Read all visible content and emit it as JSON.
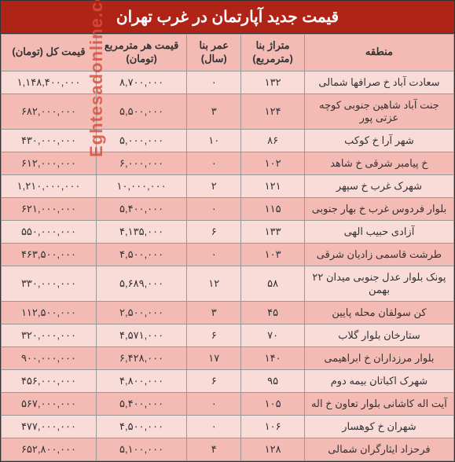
{
  "title": "قیمت جدید آپارتمان در غرب تهران",
  "watermark": "اقتصادآنلاین  Eghtesadonline.com",
  "headers": {
    "region": "منطقه",
    "area": "متراژ بنا (مترمربع)",
    "age": "عمر بنا (سال)",
    "ppm": "قیمت هر مترمربع (تومان)",
    "total": "قیمت کل (تومان)"
  },
  "rows": [
    {
      "region": "سعادت آباد خ صرافها شمالی",
      "area": "۱۳۲",
      "age": "۰",
      "ppm": "۸,۷۰۰,۰۰۰",
      "total": "۱,۱۴۸,۴۰۰,۰۰۰"
    },
    {
      "region": "جنت آباد شاهین جنوبی کوچه عزتی پور",
      "area": "۱۲۴",
      "age": "۳",
      "ppm": "۵,۵۰۰,۰۰۰",
      "total": "۶۸۲,۰۰۰,۰۰۰"
    },
    {
      "region": "شهر آرا خ کوکب",
      "area": "۸۶",
      "age": "۱۰",
      "ppm": "۵,۰۰۰,۰۰۰",
      "total": "۴۳۰,۰۰۰,۰۰۰"
    },
    {
      "region": "خ پیامبر شرقی خ شاهد",
      "area": "۱۰۲",
      "age": "۰",
      "ppm": "۶,۰۰۰,۰۰۰",
      "total": "۶۱۲,۰۰۰,۰۰۰"
    },
    {
      "region": "شهرک غرب خ سپهر",
      "area": "۱۲۱",
      "age": "۲",
      "ppm": "۱۰,۰۰۰,۰۰۰",
      "total": "۱,۲۱۰,۰۰۰,۰۰۰"
    },
    {
      "region": "بلوار فردوس غرب خ بهار جنوبی",
      "area": "۱۱۵",
      "age": "۰",
      "ppm": "۵,۴۰۰,۰۰۰",
      "total": "۶۲۱,۰۰۰,۰۰۰"
    },
    {
      "region": "آزادی حبیب الهی",
      "area": "۱۳۳",
      "age": "۶",
      "ppm": "۴,۱۳۵,۰۰۰",
      "total": "۵۵۰,۰۰۰,۰۰۰"
    },
    {
      "region": "طرشت قاسمی زادیان شرقی",
      "area": "۱۰۳",
      "age": "۰",
      "ppm": "۴,۵۰۰,۰۰۰",
      "total": "۴۶۳,۵۰۰,۰۰۰"
    },
    {
      "region": "پونک بلوار عدل جنوبی میدان ۲۲ بهمن",
      "area": "۵۸",
      "age": "۱۲",
      "ppm": "۵,۶۸۹,۰۰۰",
      "total": "۳۳۰,۰۰۰,۰۰۰"
    },
    {
      "region": "کن سولقان محله پایین",
      "area": "۴۵",
      "age": "۳",
      "ppm": "۲,۵۰۰,۰۰۰",
      "total": "۱۱۲,۵۰۰,۰۰۰"
    },
    {
      "region": "ستارخان بلوار گلاب",
      "area": "۷۰",
      "age": "۶",
      "ppm": "۴,۵۷۱,۰۰۰",
      "total": "۳۲۰,۰۰۰,۰۰۰"
    },
    {
      "region": "بلوار مرزداران خ ابراهیمی",
      "area": "۱۴۰",
      "age": "۱۷",
      "ppm": "۶,۴۲۸,۰۰۰",
      "total": "۹۰۰,۰۰۰,۰۰۰"
    },
    {
      "region": "شهرک اکباتان بیمه دوم",
      "area": "۹۵",
      "age": "۶",
      "ppm": "۴,۸۰۰,۰۰۰",
      "total": "۴۵۶,۰۰۰,۰۰۰"
    },
    {
      "region": "آیت اله کاشانی بلوار تعاون خ اله",
      "area": "۱۰۵",
      "age": "۰",
      "ppm": "۵,۴۰۰,۰۰۰",
      "total": "۵۶۷,۰۰۰,۰۰۰"
    },
    {
      "region": "شهران خ کوهسار",
      "area": "۱۰۶",
      "age": "۰",
      "ppm": "۴,۵۰۰,۰۰۰",
      "total": "۴۷۷,۰۰۰,۰۰۰"
    },
    {
      "region": "فرحزاد ایثارگران شمالی",
      "area": "۱۲۸",
      "age": "۴",
      "ppm": "۵,۱۰۰,۰۰۰",
      "total": "۶۵۲,۸۰۰,۰۰۰"
    }
  ],
  "colors": {
    "title_bg": "#b02418",
    "title_fg": "#ffffff",
    "header_bg": "#f4bbb5",
    "row_odd_bg": "#f9dcd8",
    "row_even_bg": "#f4bbb5",
    "border": "#999",
    "watermark": "#d94f3f"
  }
}
